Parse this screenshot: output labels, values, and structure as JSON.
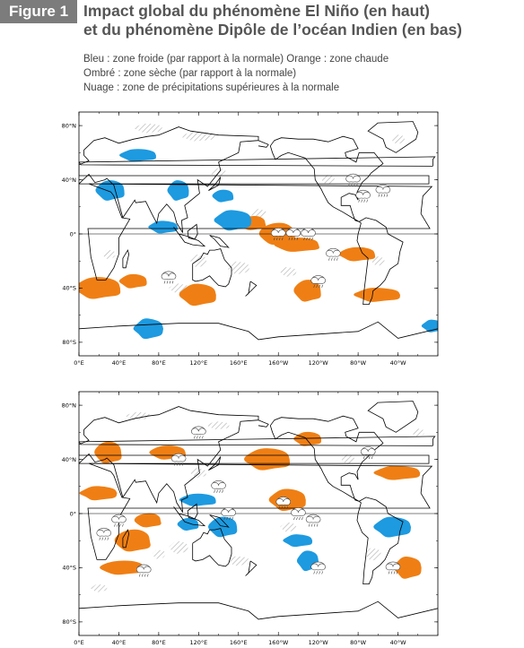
{
  "figure": {
    "badge": "Figure 1",
    "title_line1": "Impact global du phénomène El Niño (en haut)",
    "title_line2": "et du phénomène Dipôle de l’océan Indien (en bas)"
  },
  "legend": {
    "line1": "Bleu : zone froide (par rapport à la normale)  Orange : zone chaude",
    "line2": "Ombré : zone sèche (par rapport à la normale)",
    "line3": "Nuage : zone de précipitations supérieures à la normale"
  },
  "colors": {
    "cold": "#1d9ae0",
    "warm": "#ef7f14",
    "dry_hatch": "#b8b8b8",
    "coast": "#000000"
  },
  "axes": {
    "lat_ticks": [
      "80°N",
      "40°N",
      "0°",
      "40°S",
      "80°S"
    ],
    "lon_ticks": [
      "0°E",
      "40°E",
      "80°E",
      "120°E",
      "160°E",
      "160°W",
      "120°W",
      "80°W",
      "40°W"
    ]
  },
  "maps": [
    {
      "name": "El Niño",
      "cold_zones": [
        [
          145,
          28
        ],
        [
          32,
          32
        ],
        [
          60,
          58
        ],
        [
          100,
          32
        ],
        [
          85,
          5
        ],
        [
          155,
          10
        ],
        [
          -5,
          -68
        ],
        [
          70,
          -70
        ]
      ],
      "warm_zones": [
        [
          175,
          8
        ],
        [
          -160,
          0
        ],
        [
          -140,
          -8
        ],
        [
          -130,
          -42
        ],
        [
          -80,
          -15
        ],
        [
          20,
          -40
        ],
        [
          55,
          -35
        ],
        [
          120,
          -45
        ],
        [
          -60,
          -45
        ]
      ],
      "wet_zones": [
        [
          -160,
          0
        ],
        [
          -145,
          0
        ],
        [
          -130,
          0
        ],
        [
          -120,
          -35
        ],
        [
          -105,
          -15
        ],
        [
          -85,
          40
        ],
        [
          -75,
          28
        ],
        [
          -55,
          32
        ],
        [
          90,
          -32
        ]
      ]
    },
    {
      "name": "Dipôle de l’océan Indien",
      "cold_zones": [
        [
          110,
          -8
        ],
        [
          145,
          -10
        ],
        [
          120,
          10
        ],
        [
          -130,
          -35
        ],
        [
          -140,
          -20
        ],
        [
          -45,
          -10
        ]
      ],
      "warm_zones": [
        [
          70,
          -5
        ],
        [
          55,
          -20
        ],
        [
          45,
          -40
        ],
        [
          30,
          45
        ],
        [
          90,
          45
        ],
        [
          -170,
          40
        ],
        [
          -130,
          55
        ],
        [
          -150,
          10
        ],
        [
          -40,
          30
        ],
        [
          -30,
          -40
        ],
        [
          20,
          15
        ]
      ],
      "wet_zones": [
        [
          120,
          60
        ],
        [
          100,
          40
        ],
        [
          140,
          20
        ],
        [
          150,
          0
        ],
        [
          -155,
          8
        ],
        [
          -140,
          0
        ],
        [
          -125,
          -5
        ],
        [
          40,
          -5
        ],
        [
          65,
          -42
        ],
        [
          25,
          -15
        ],
        [
          -120,
          -40
        ],
        [
          -45,
          -40
        ],
        [
          -70,
          45
        ]
      ]
    }
  ]
}
